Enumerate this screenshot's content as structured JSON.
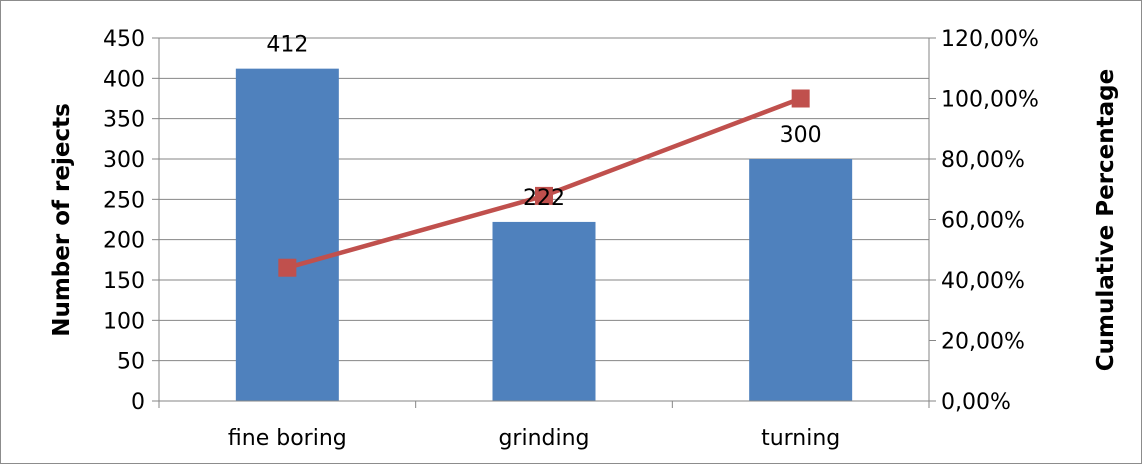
{
  "chart_data": {
    "type": "bar",
    "categories": [
      "fine boring",
      "grinding",
      "turning"
    ],
    "series": [
      {
        "values": [
          412,
          222,
          300
        ],
        "color": "#4f81bd",
        "data_labels": [
          "412",
          "222",
          "300"
        ],
        "axis": "left"
      },
      {
        "type": "line",
        "values": [
          44.06,
          67.8,
          100
        ],
        "color": "#c0504d",
        "marker": "square",
        "axis": "right"
      }
    ],
    "ylabel": "Number of rejects",
    "y2label": "Cumulative Percentage",
    "ylim": [
      0,
      450
    ],
    "y2lim": [
      0,
      120
    ],
    "yticks": [
      "0",
      "50",
      "100",
      "150",
      "200",
      "250",
      "300",
      "350",
      "400",
      "450"
    ],
    "y2ticks": [
      "0,00%",
      "20,00%",
      "40,00%",
      "60,00%",
      "80,00%",
      "100,00%",
      "120,00%"
    ],
    "grid": true,
    "gridline_color": "#868686",
    "legend": "none"
  }
}
